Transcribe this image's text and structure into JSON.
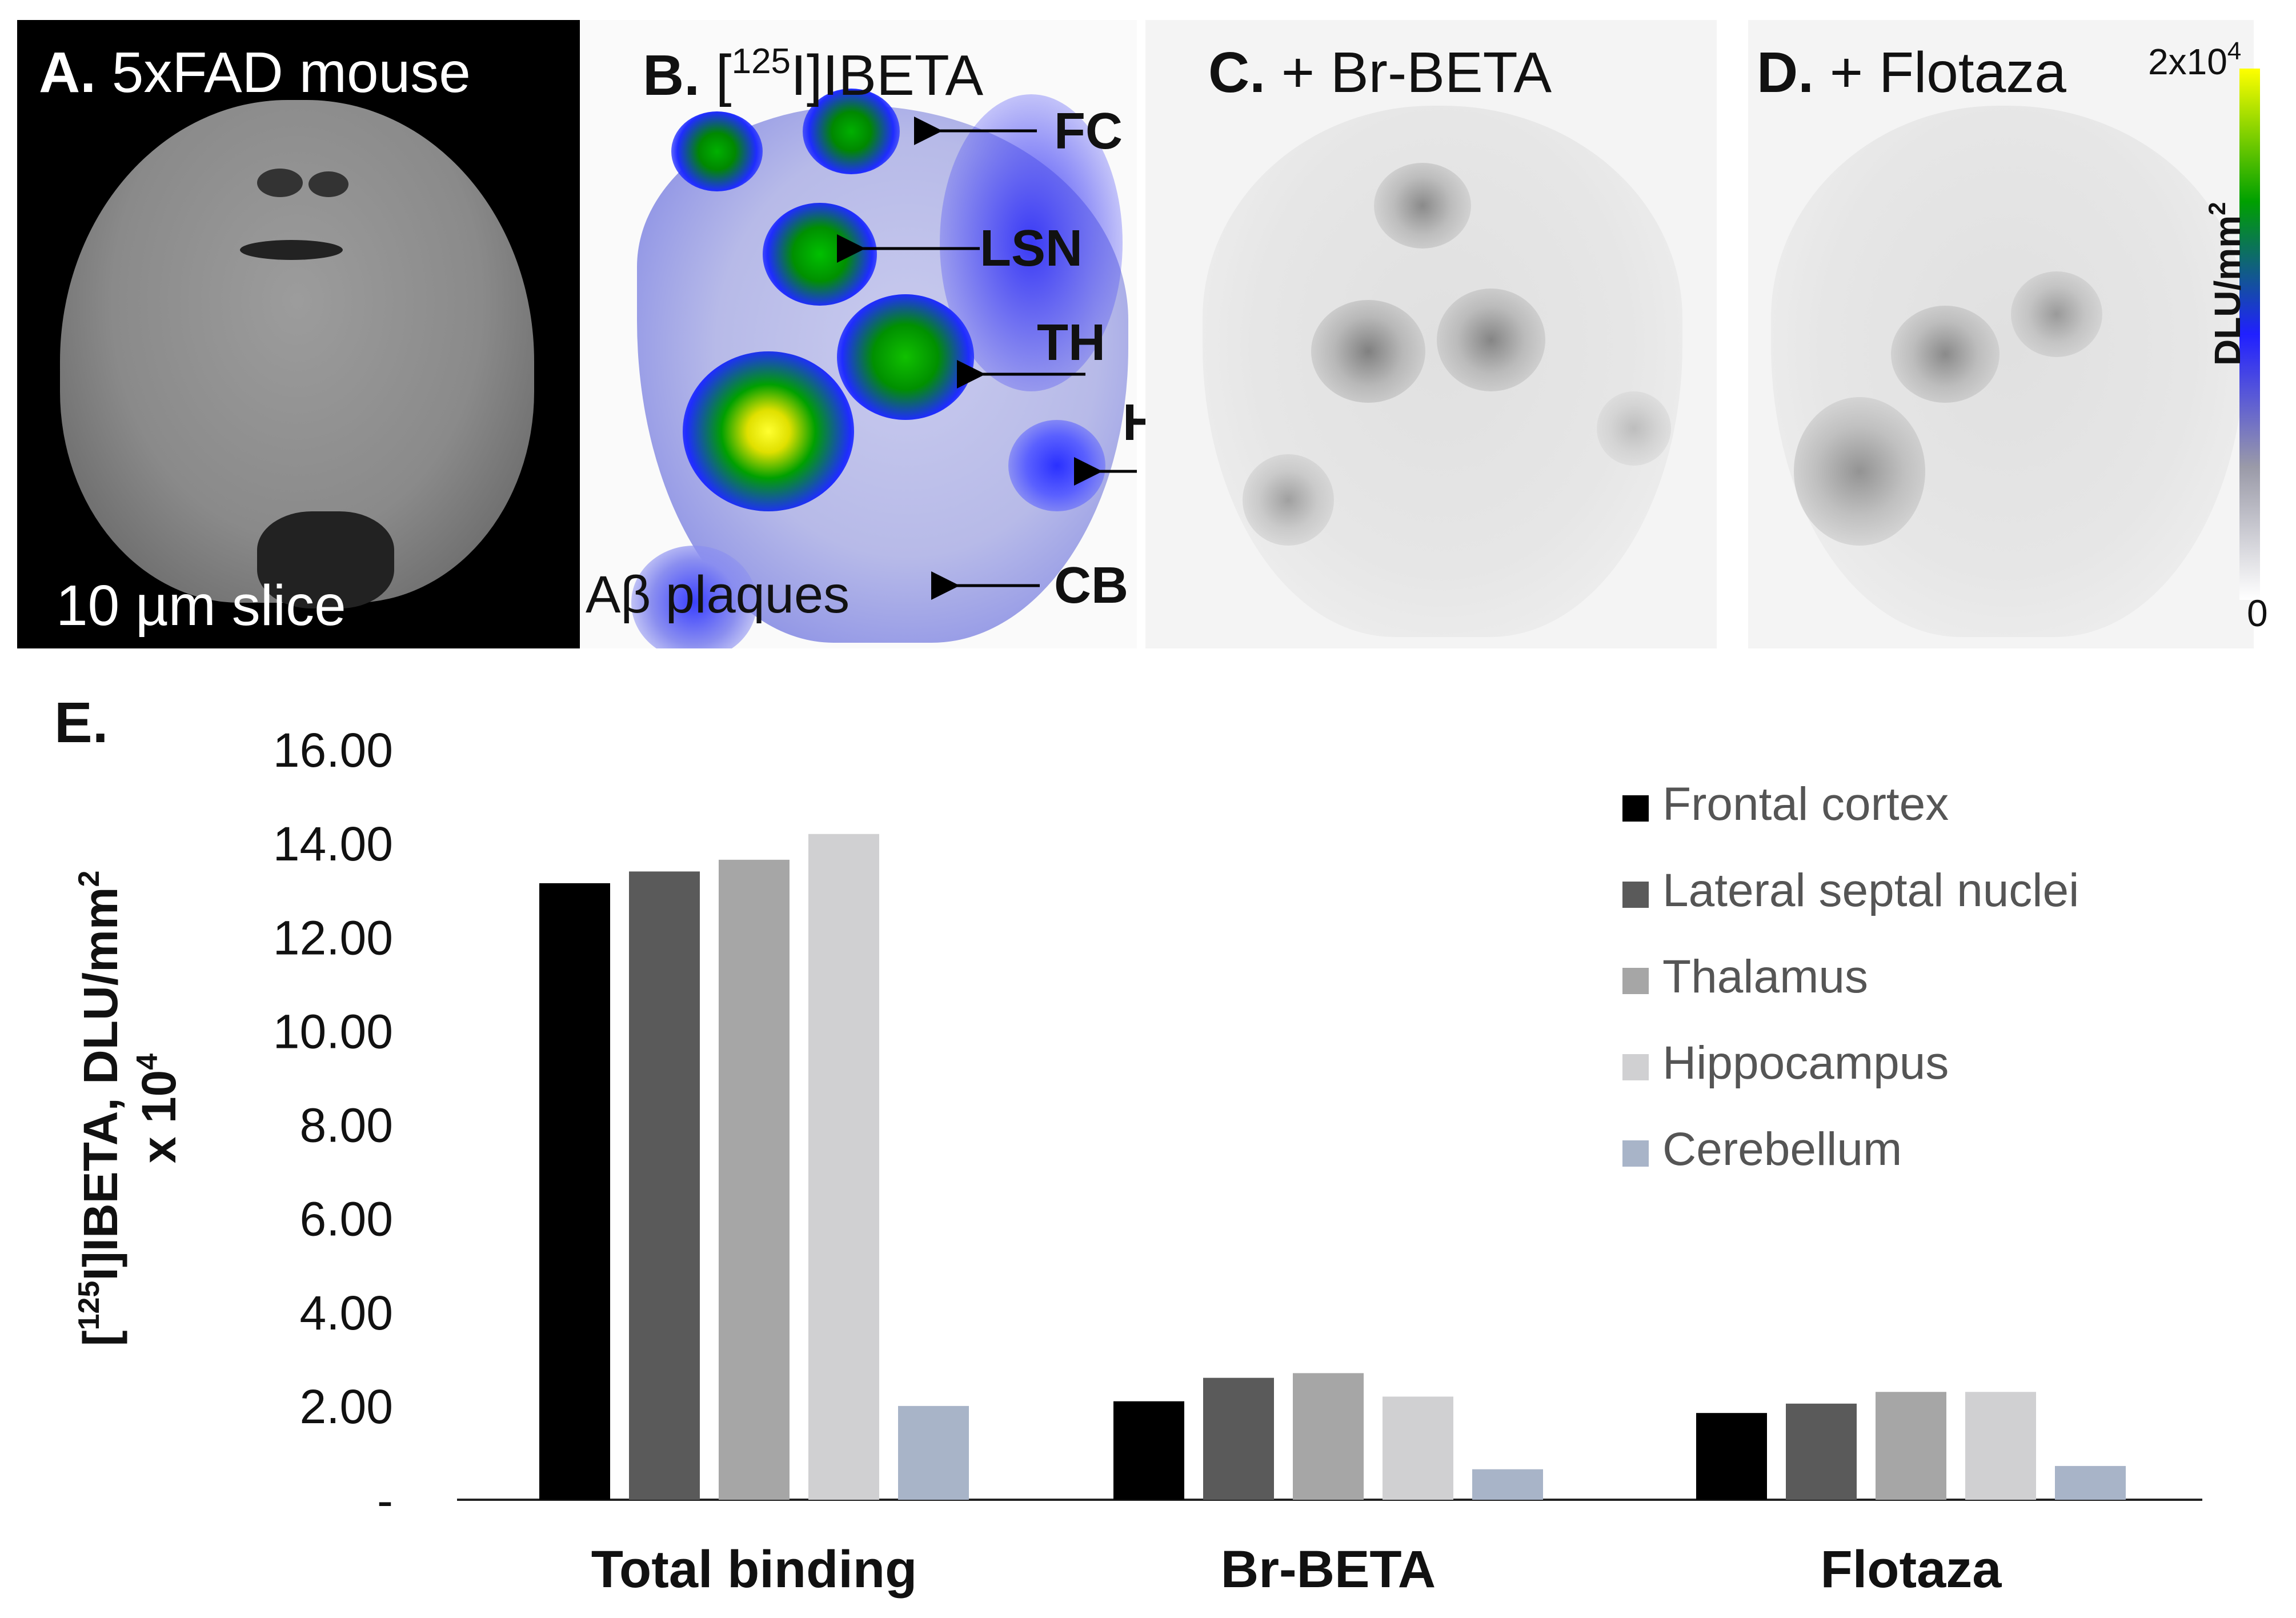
{
  "panels": {
    "a": {
      "letter": "A.",
      "title": "5xFAD mouse",
      "caption": "10 µm slice"
    },
    "b": {
      "letter": "B.",
      "title_pre": "[",
      "title_sup": "125",
      "title_post": "I]IBETA",
      "labels": {
        "fc": "FC",
        "lsn": "LSN",
        "th": "TH",
        "hp": "HP",
        "cb": "CB",
        "plaques": "Aβ plaques"
      }
    },
    "c": {
      "letter": "C.",
      "title": "+ Br-BETA"
    },
    "d": {
      "letter": "D.",
      "title": "+ Flotaza"
    }
  },
  "colorbar": {
    "max_label_base": "2x10",
    "max_label_exp": "4",
    "min_label": "0",
    "unit_base": "DLU/mm",
    "unit_exp": "2",
    "colors": [
      "#ffffff",
      "#9a9aa8",
      "#2020ff",
      "#00a000",
      "#ffff00"
    ]
  },
  "panel_e_letter": "E.",
  "chart_data": {
    "type": "bar",
    "categories": [
      "Total binding",
      "Br-BETA",
      "Flotaza"
    ],
    "series": [
      {
        "name": "Frontal cortex",
        "color": "#000000",
        "values": [
          13.15,
          2.1,
          1.85
        ]
      },
      {
        "name": "Lateral septal nuclei",
        "color": "#5a5a5a",
        "values": [
          13.4,
          2.6,
          2.05
        ]
      },
      {
        "name": "Thalamus",
        "color": "#a6a6a6",
        "values": [
          13.65,
          2.7,
          2.3
        ]
      },
      {
        "name": "Hippocampus",
        "color": "#d0d0d2",
        "values": [
          14.2,
          2.2,
          2.3
        ]
      },
      {
        "name": "Cerebellum",
        "color": "#a8b4c8",
        "values": [
          2.0,
          0.65,
          0.72
        ]
      }
    ],
    "ylabel_line1_pre": "[",
    "ylabel_line1_sup": "125",
    "ylabel_line1_post": "I]IBETA, DLU/mm",
    "ylabel_line1_sup2": "2",
    "ylabel_line2_pre": "x 10",
    "ylabel_line2_sup": "4",
    "yticks": [
      "-",
      "2.00",
      "4.00",
      "6.00",
      "8.00",
      "10.00",
      "12.00",
      "14.00",
      "16.00"
    ],
    "ylim": [
      0,
      16
    ],
    "legend_position": "top-right",
    "grid": false
  }
}
